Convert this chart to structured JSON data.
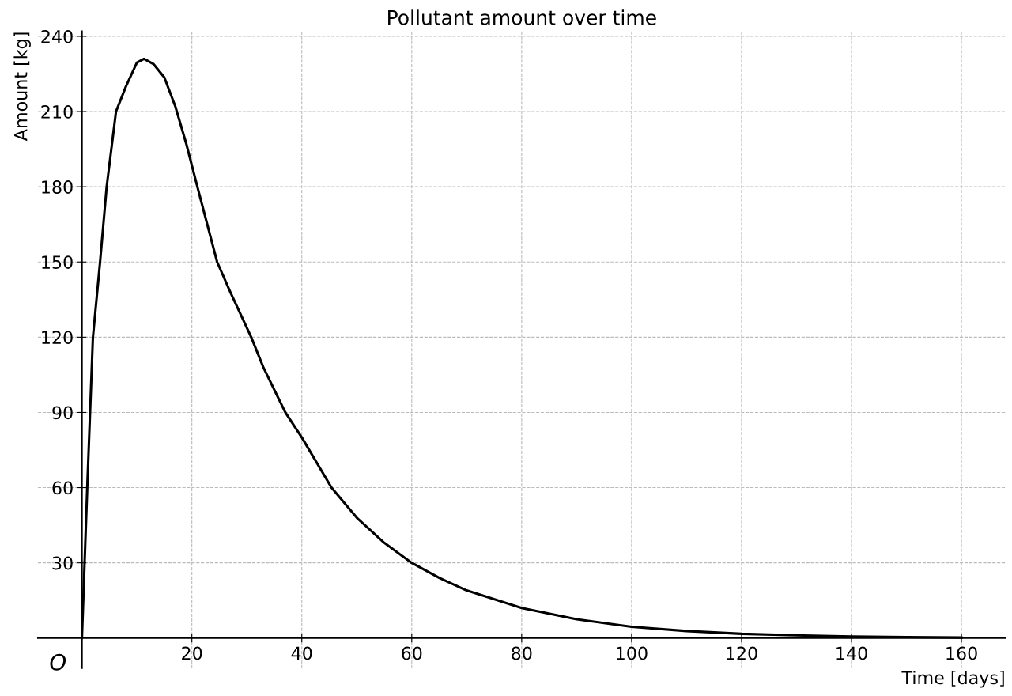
{
  "chart_data": {
    "type": "line",
    "title": "Pollutant amount over time",
    "xlabel": "Time [days]",
    "ylabel": "Amount [kg]",
    "annotations": [
      "O"
    ],
    "x": [
      0,
      1,
      2,
      3.3,
      4.5,
      6.2,
      8,
      10,
      11.3,
      13,
      15,
      17,
      19,
      21,
      24.6,
      27,
      30.8,
      33,
      37,
      40,
      45.4,
      50,
      55,
      60,
      65,
      70,
      80,
      90,
      100,
      110,
      120,
      130,
      140,
      150,
      160
    ],
    "series": [
      {
        "color": "#000000",
        "values": [
          0,
          62,
          120,
          150,
          180,
          210,
          220,
          229.5,
          231,
          229,
          223.6,
          212,
          197,
          180,
          150,
          138,
          120,
          108,
          90,
          80,
          60,
          48,
          38,
          30,
          24,
          19,
          12,
          7.5,
          4.5,
          2.8,
          1.7,
          1.1,
          0.6,
          0.4,
          0.2
        ]
      }
    ],
    "xlim": [
      -8,
      168
    ],
    "ylim": [
      -12,
      242
    ],
    "xticks": [
      20,
      40,
      60,
      80,
      100,
      120,
      140,
      160
    ],
    "yticks": [
      30,
      60,
      90,
      120,
      150,
      180,
      210,
      240
    ],
    "grid": true,
    "marker": "none",
    "line_style": "solid",
    "legend": false
  }
}
